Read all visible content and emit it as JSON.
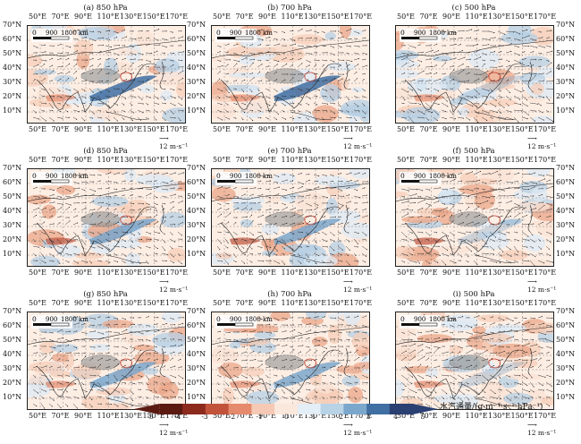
{
  "panels": [
    {
      "id": "a",
      "title": "(a) 850 hPa",
      "ref_vector": "12 m·s⁻¹"
    },
    {
      "id": "b",
      "title": "(b) 700 hPa",
      "ref_vector": "12 m·s⁻¹"
    },
    {
      "id": "c",
      "title": "(c) 500 hPa",
      "ref_vector": "12 m·s⁻¹"
    },
    {
      "id": "d",
      "title": "(d) 850 hPa",
      "ref_vector": "12 m·s⁻¹"
    },
    {
      "id": "e",
      "title": "(e) 700 hPa",
      "ref_vector": "12 m·s⁻¹"
    },
    {
      "id": "f",
      "title": "(f) 500 hPa",
      "ref_vector": "12 m·s⁻¹"
    },
    {
      "id": "g",
      "title": "(g) 850 hPa",
      "ref_vector": "12 m·s⁻¹"
    },
    {
      "id": "h",
      "title": "(h) 700 hPa",
      "ref_vector": "12 m·s⁻¹"
    },
    {
      "id": "i",
      "title": "(i) 500 hPa",
      "ref_vector": "12 m·s⁻¹"
    }
  ],
  "lon_labels": [
    "50°E",
    "70°E",
    "90°E",
    "110°E",
    "130°E",
    "150°E",
    "170°E"
  ],
  "lat_labels": [
    "70°N",
    "60°N",
    "50°N",
    "40°N",
    "30°N",
    "20°N",
    "10°N"
  ],
  "scalebar": {
    "t0": "0",
    "t1": "900",
    "t2": "1800 km"
  },
  "colorbar": {
    "ticks": [
      "-5",
      "-4",
      "-3",
      "-2",
      "-1",
      "0",
      "1",
      "2",
      "3",
      "4",
      "5"
    ],
    "colors": [
      "#5a1a12",
      "#8c2a1d",
      "#c2533b",
      "#e58a6c",
      "#f5c9b3",
      "#fbe8dc",
      "#e3eef7",
      "#b8d2e6",
      "#7ba7cc",
      "#3f6fa3",
      "#2a3f72"
    ],
    "label": "水汽通量/(g·m⁻¹·s⁻¹·hPa⁻¹)"
  }
}
